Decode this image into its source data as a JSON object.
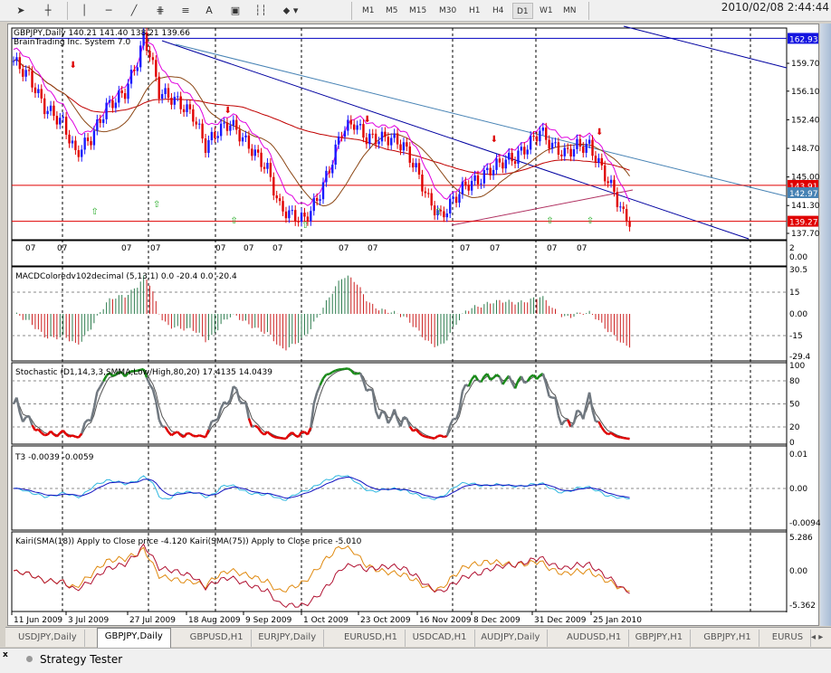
{
  "toolbar": {
    "tools": [
      "cursor-icon",
      "crosshair-icon",
      "vertical-line-icon",
      "horizontal-line-icon",
      "trendline-icon",
      "fibonacci-icon",
      "fibo-lines-icon",
      "text-icon",
      "text-label-icon",
      "period-separator-icon",
      "arrows-icon"
    ],
    "text_tool": "A",
    "timeframes": [
      "M1",
      "M5",
      "M15",
      "M30",
      "H1",
      "H4",
      "D1",
      "W1",
      "MN"
    ],
    "active_timeframe": "D1",
    "clock": "2010/02/08 2:44:44"
  },
  "main": {
    "header": "GBPJPY,Daily  140.21 141.40 138.21 139.66",
    "system": "BrainTrading Inc. System 7.0",
    "price_ticks": [
      "159.70",
      "156.10",
      "152.40",
      "148.70",
      "145.00",
      "141.30",
      "137.70"
    ],
    "labels": {
      "top_line": "162.93",
      "red_upper": "143.91",
      "channel": "142.97",
      "red_lower": "139.27"
    },
    "price_path": [
      [
        0,
        160
      ],
      [
        5,
        158
      ],
      [
        10,
        154
      ],
      [
        16,
        152
      ],
      [
        20,
        148
      ],
      [
        25,
        150
      ],
      [
        30,
        154
      ],
      [
        36,
        156
      ],
      [
        40,
        160
      ],
      [
        42,
        163
      ],
      [
        44,
        161
      ],
      [
        47,
        156
      ],
      [
        52,
        155
      ],
      [
        58,
        153
      ],
      [
        62,
        149
      ],
      [
        66,
        151
      ],
      [
        70,
        152
      ],
      [
        74,
        150
      ],
      [
        78,
        148
      ],
      [
        82,
        146
      ],
      [
        86,
        141
      ],
      [
        90,
        140
      ],
      [
        94,
        139.5
      ],
      [
        98,
        142
      ],
      [
        102,
        146
      ],
      [
        106,
        151
      ],
      [
        110,
        152
      ],
      [
        114,
        150
      ],
      [
        118,
        150
      ],
      [
        122,
        150
      ],
      [
        126,
        149
      ],
      [
        130,
        146
      ],
      [
        134,
        142
      ],
      [
        138,
        139.8
      ],
      [
        142,
        142
      ],
      [
        146,
        144
      ],
      [
        150,
        144.5
      ],
      [
        154,
        146
      ],
      [
        158,
        147
      ],
      [
        162,
        147.5
      ],
      [
        166,
        149
      ],
      [
        170,
        151
      ],
      [
        174,
        149
      ],
      [
        178,
        148
      ],
      [
        182,
        149
      ],
      [
        186,
        149
      ],
      [
        190,
        146
      ],
      [
        194,
        143
      ],
      [
        197,
        140
      ],
      [
        199,
        139.3
      ]
    ]
  },
  "small_panel": {
    "label_07": "07",
    "ticks": [
      "2",
      "0.00"
    ]
  },
  "macd": {
    "title": "MACDColoredv102decimal (5,13,1) 0.0 -20.4 0.0 -20.4",
    "ticks": [
      "30.5",
      "15",
      "0.00",
      "-15",
      "-29.4"
    ]
  },
  "stoch": {
    "title": "Stochastic (D1,14,3,3,SMMA,Low/High,80,20) 17.4135 14.0439",
    "ticks": [
      "100",
      "80",
      "50",
      "20",
      "0"
    ]
  },
  "t3": {
    "title": "T3 -0.0039 -0.0059",
    "ticks": [
      "0.01",
      "0.00",
      "-0.0094"
    ]
  },
  "kairi": {
    "title": "Kairi(SMA(18)) Apply to Close price -4.120  Kairi(SMA(75)) Apply to Close price -5.010",
    "ticks": [
      "5.286",
      "0.00",
      "-5.362"
    ]
  },
  "dates": [
    "11 Jun 2009",
    "3 Jul 2009",
    "27 Jul 2009",
    "18 Aug 2009",
    "9 Sep 2009",
    "1 Oct 2009",
    "23 Oct 2009",
    "16 Nov 2009",
    "8 Dec 2009",
    "31 Dec 2009",
    "25 Jan 2010"
  ],
  "tabs": [
    "USDJPY,Daily",
    "GBPJPY,Daily",
    "GBPUSD,H1",
    "EURJPY,Daily",
    "EURUSD,H1",
    "USDCAD,H1",
    "AUDJPY,Daily",
    "AUDUSD,H1",
    "GBPJPY,H1",
    "GBPJPY,H1",
    "EURUS"
  ],
  "active_tab": "GBPJPY,Daily",
  "tester": {
    "label": "Strategy Tester",
    "close": "x"
  },
  "colors": {
    "bull": "#1a1aff",
    "bear": "#e00000",
    "macd_up": "#2e7d4f",
    "macd_down": "#cc2020",
    "stoch": "#707880",
    "t3a": "#1010c0",
    "t3b": "#30b8e0",
    "kairi_a": "#e08a10",
    "kairi_b": "#b01030"
  }
}
